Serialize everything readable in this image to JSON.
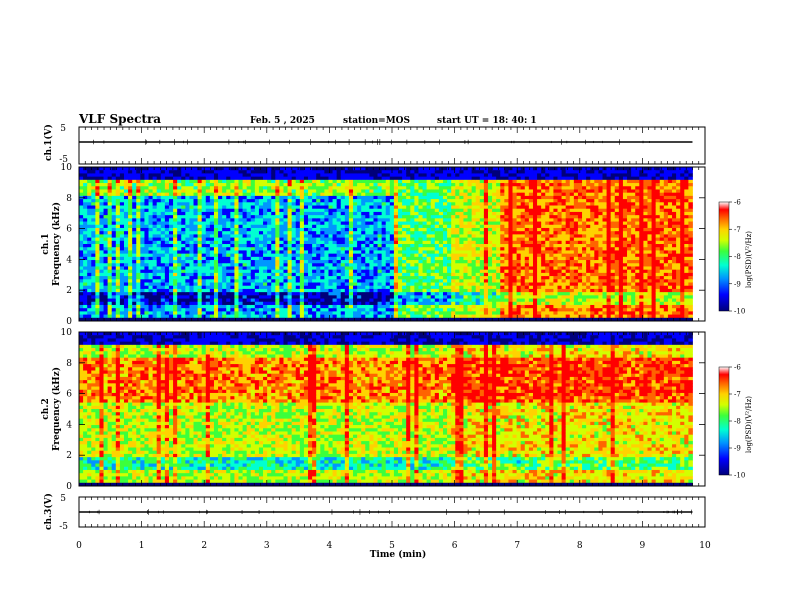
{
  "header": {
    "title": "VLF Spectra",
    "date": "Feb. 5 , 2025",
    "station": "station=MOS",
    "start_ut": "start UT =  18: 40: 1"
  },
  "chart_data": [
    {
      "type": "line",
      "panel": "ch1-waveform",
      "ylabel": "ch.1(V)",
      "yticks": [
        "5",
        "-5"
      ],
      "ylim": [
        -5,
        5
      ],
      "xlim": [
        0,
        10
      ],
      "series": [
        {
          "x": [
            0,
            9.8
          ],
          "values": [
            0,
            0
          ]
        }
      ]
    },
    {
      "type": "heatmap",
      "panel": "ch1-spectrogram",
      "ylabel": "ch.1\nFrequency (kHz)",
      "xlim": [
        0,
        10
      ],
      "ylim": [
        0,
        10
      ],
      "yticks": [
        "0",
        "2",
        "4",
        "6",
        "8",
        "10"
      ],
      "data_xmax": 9.8,
      "intensity_segments": [
        {
          "x_from": 0,
          "x_to": 5.0,
          "level": 0.3
        },
        {
          "x_from": 5.0,
          "x_to": 5.9,
          "level": 0.5
        },
        {
          "x_from": 5.9,
          "x_to": 6.7,
          "level": 0.62
        },
        {
          "x_from": 6.7,
          "x_to": 9.8,
          "level": 0.82
        }
      ],
      "colorbar": {
        "label": "log(PSD)(V²/Hz)",
        "ticks": [
          "-6",
          "-7",
          "-8",
          "-9",
          "-10"
        ],
        "range": [
          -10,
          -6
        ]
      }
    },
    {
      "type": "heatmap",
      "panel": "ch2-spectrogram",
      "ylabel": "ch.2\nFrequency (kHz)",
      "xlim": [
        0,
        10
      ],
      "ylim": [
        0,
        10
      ],
      "yticks": [
        "0",
        "2",
        "4",
        "6",
        "8",
        "10"
      ],
      "data_xmax": 9.8,
      "intensity_segments": [
        {
          "x_from": 0,
          "x_to": 5.9,
          "level": 0.6
        },
        {
          "x_from": 5.9,
          "x_to": 9.8,
          "level": 0.68
        }
      ],
      "colorbar": {
        "label": "log(PSD)(V²/Hz)",
        "ticks": [
          "-6",
          "-7",
          "-8",
          "-9",
          "-10"
        ],
        "range": [
          -10,
          -6
        ]
      }
    },
    {
      "type": "line",
      "panel": "ch3-waveform",
      "ylabel": "ch.3(V)",
      "yticks": [
        "5",
        "-5"
      ],
      "ylim": [
        -5,
        5
      ],
      "xlim": [
        0,
        10
      ],
      "series": [
        {
          "x": [
            0,
            9.8
          ],
          "values": [
            0,
            0
          ]
        }
      ]
    }
  ],
  "xaxis": {
    "label": "Time (min)",
    "ticks": [
      "0",
      "1",
      "2",
      "3",
      "4",
      "5",
      "6",
      "7",
      "8",
      "9",
      "10"
    ]
  },
  "colormap": [
    "#00007a",
    "#0000ff",
    "#0096ff",
    "#00ffd2",
    "#3cff3c",
    "#d2ff00",
    "#ffd200",
    "#ff6400",
    "#ff0000",
    "#ffffff"
  ]
}
